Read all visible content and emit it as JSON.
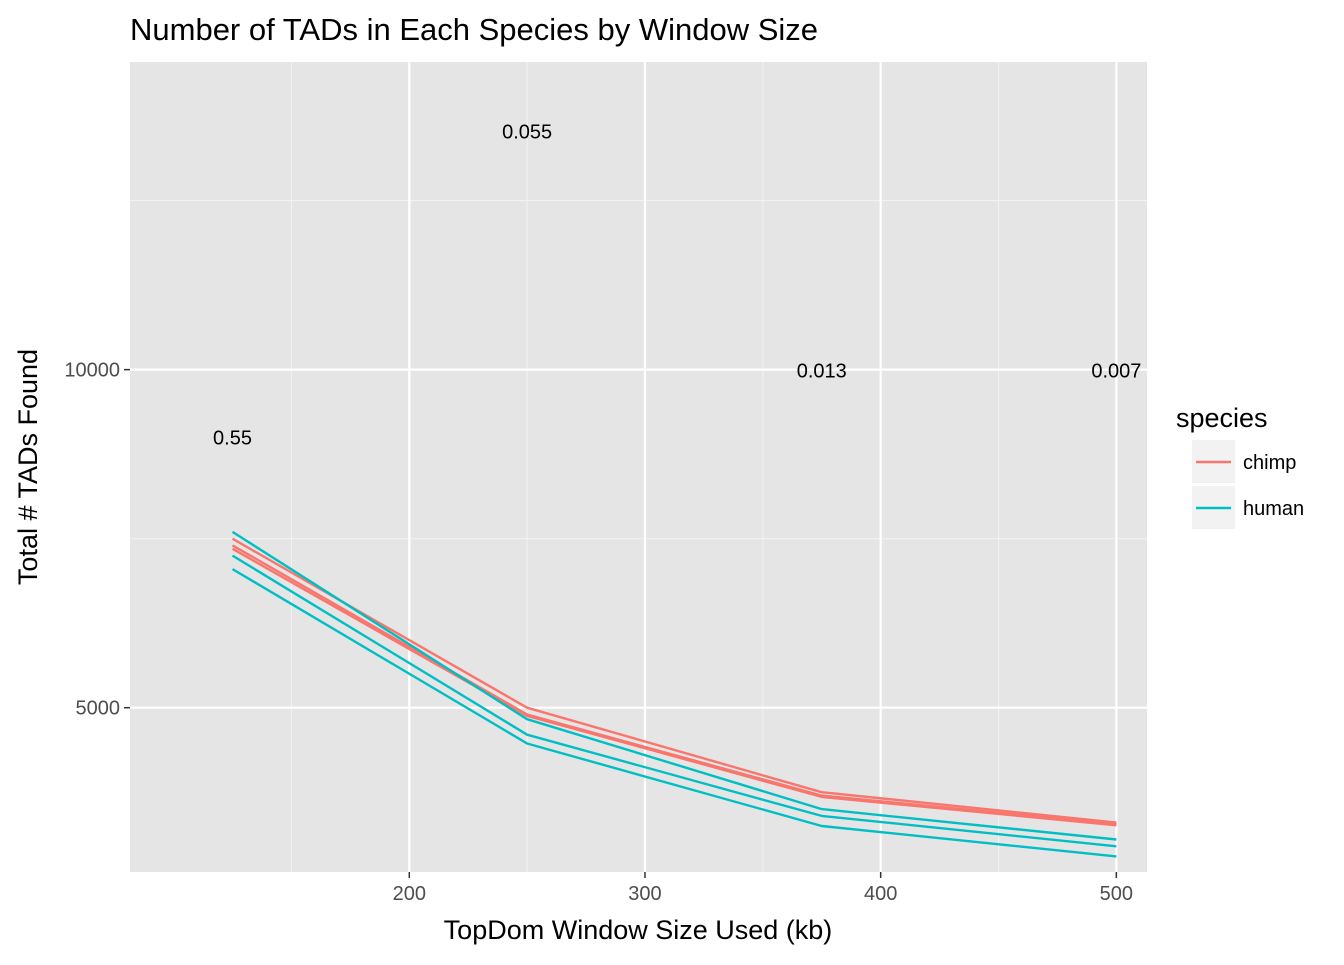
{
  "chart_data": {
    "type": "line",
    "title": "Number of TADs in Each Species by Window Size",
    "xlabel": "TopDom Window Size Used (kb)",
    "ylabel": "Total # TADs Found",
    "x": [
      125,
      250,
      375,
      500
    ],
    "x_ticks": [
      "200",
      "300",
      "400",
      "500"
    ],
    "y_ticks": [
      "5000",
      "10000"
    ],
    "xlim": [
      81.5,
      513
    ],
    "ylim": [
      2570,
      14550
    ],
    "grid": true,
    "legend": {
      "title": "species",
      "position": "right",
      "entries": [
        {
          "label": "chimp",
          "color": "#F8766D"
        },
        {
          "label": "human",
          "color": "#00BFC4"
        }
      ]
    },
    "series": [
      {
        "group": "chimp",
        "color": "#F8766D",
        "values": [
          7500,
          5000,
          3750,
          3300
        ]
      },
      {
        "group": "chimp",
        "color": "#F8766D",
        "values": [
          7400,
          4900,
          3700,
          3280
        ]
      },
      {
        "group": "chimp",
        "color": "#F8766D",
        "values": [
          7350,
          4880,
          3680,
          3260
        ]
      },
      {
        "group": "human",
        "color": "#00BFC4",
        "values": [
          7600,
          4830,
          3500,
          3050
        ]
      },
      {
        "group": "human",
        "color": "#00BFC4",
        "values": [
          7250,
          4600,
          3400,
          2950
        ]
      },
      {
        "group": "human",
        "color": "#00BFC4",
        "values": [
          7050,
          4470,
          3250,
          2800
        ]
      }
    ],
    "annotations": [
      {
        "x": 125,
        "y": 9000,
        "text": "0.55"
      },
      {
        "x": 250,
        "y": 13520,
        "text": "0.055"
      },
      {
        "x": 375,
        "y": 9990,
        "text": "0.013"
      },
      {
        "x": 500,
        "y": 9990,
        "text": "0.007"
      }
    ]
  }
}
